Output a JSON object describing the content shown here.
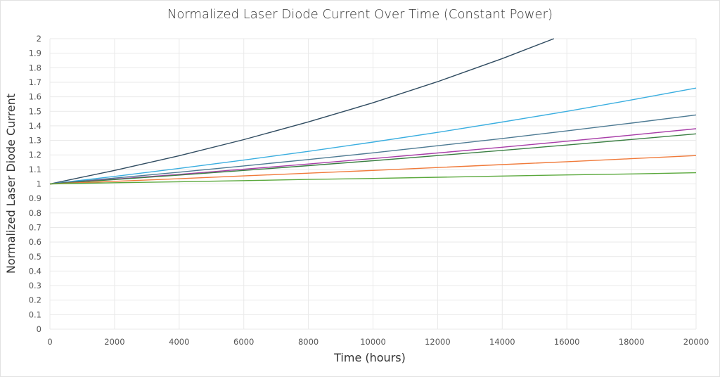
{
  "chart_data": {
    "type": "line",
    "title": "Normalized Laser Diode Current Over Time (Constant Power)",
    "xlabel": "Time (hours)",
    "ylabel": "Normalized Laser Diode Current",
    "xlim": [
      0,
      20000
    ],
    "ylim": [
      0,
      2
    ],
    "xticks": [
      0,
      2000,
      4000,
      6000,
      8000,
      10000,
      12000,
      14000,
      16000,
      18000,
      20000
    ],
    "yticks": [
      0,
      0.1,
      0.2,
      0.3,
      0.4,
      0.5,
      0.6,
      0.7,
      0.8,
      0.9,
      1,
      1.1,
      1.2,
      1.3,
      1.4,
      1.5,
      1.6,
      1.7,
      1.8,
      1.9,
      2
    ],
    "grid": true,
    "legend": "none",
    "series": [
      {
        "color": "#2f4b60",
        "x": [
          0,
          2000,
          4000,
          6000,
          8000,
          10000,
          12000,
          14000,
          15600
        ],
        "y": [
          1,
          1.093,
          1.194,
          1.305,
          1.427,
          1.559,
          1.704,
          1.863,
          2.0
        ]
      },
      {
        "color": "#3aaee0",
        "x": [
          0,
          2000,
          4000,
          6000,
          8000,
          10000,
          12000,
          14000,
          16000,
          18000,
          20000
        ],
        "y": [
          1,
          1.052,
          1.107,
          1.164,
          1.224,
          1.288,
          1.355,
          1.426,
          1.5,
          1.578,
          1.66
        ]
      },
      {
        "color": "#4d7a93",
        "x": [
          0,
          2000,
          4000,
          6000,
          8000,
          10000,
          12000,
          14000,
          16000,
          18000,
          20000
        ],
        "y": [
          1,
          1.04,
          1.081,
          1.124,
          1.168,
          1.214,
          1.263,
          1.313,
          1.365,
          1.419,
          1.475
        ]
      },
      {
        "color": "#a83ea8",
        "x": [
          0,
          2000,
          4000,
          6000,
          8000,
          10000,
          12000,
          14000,
          16000,
          18000,
          20000
        ],
        "y": [
          1,
          1.033,
          1.066,
          1.101,
          1.137,
          1.175,
          1.213,
          1.253,
          1.294,
          1.336,
          1.38
        ]
      },
      {
        "color": "#3b7f43",
        "x": [
          0,
          2000,
          4000,
          6000,
          8000,
          10000,
          12000,
          14000,
          16000,
          18000,
          20000
        ],
        "y": [
          1,
          1.03,
          1.061,
          1.093,
          1.126,
          1.16,
          1.195,
          1.231,
          1.268,
          1.306,
          1.345
        ]
      },
      {
        "color": "#f07a3a",
        "x": [
          0,
          2000,
          4000,
          6000,
          8000,
          10000,
          12000,
          14000,
          16000,
          18000,
          20000
        ],
        "y": [
          1,
          1.018,
          1.036,
          1.055,
          1.074,
          1.093,
          1.113,
          1.133,
          1.153,
          1.174,
          1.195
        ]
      },
      {
        "color": "#5aa83c",
        "x": [
          0,
          2000,
          4000,
          6000,
          8000,
          10000,
          12000,
          14000,
          16000,
          18000,
          20000
        ],
        "y": [
          1,
          1.008,
          1.015,
          1.023,
          1.031,
          1.038,
          1.046,
          1.054,
          1.062,
          1.069,
          1.077
        ]
      }
    ]
  }
}
